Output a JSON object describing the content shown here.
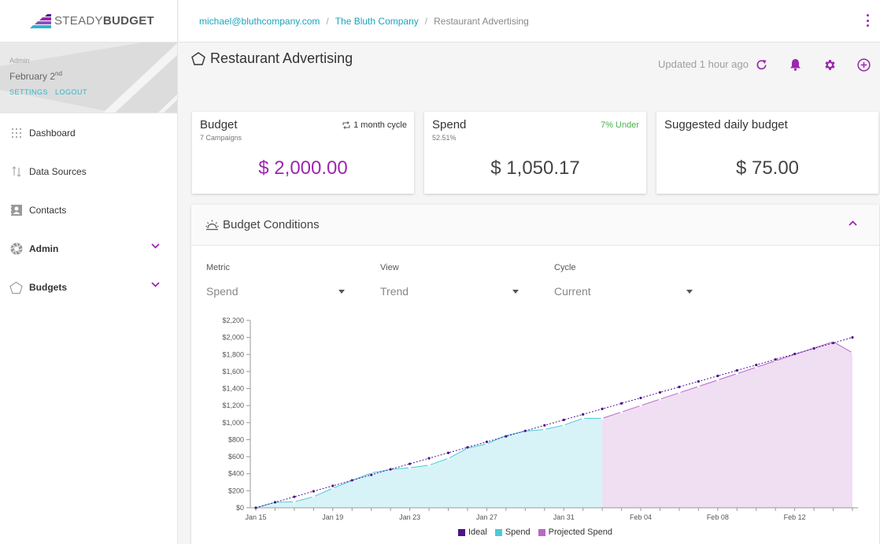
{
  "brand": {
    "name_light": "STEADY",
    "name_bold": "BUDGET"
  },
  "user": {
    "role": "Admin",
    "date_main": "February 2",
    "date_suffix": "nd",
    "settings_label": "SETTINGS",
    "logout_label": "LOGOUT"
  },
  "nav": {
    "dashboard": "Dashboard",
    "data_sources": "Data Sources",
    "contacts": "Contacts",
    "admin": "Admin",
    "budgets": "Budgets"
  },
  "breadcrumb": {
    "email": "michael@bluthcompany.com",
    "sep1": "/",
    "company": "The Bluth Company",
    "sep2": "/",
    "current": "Restaurant Advertising"
  },
  "header": {
    "title": "Restaurant Advertising",
    "updated": "Updated 1 hour ago"
  },
  "cards": {
    "budget": {
      "title": "Budget",
      "sub": "7 Campaigns",
      "cycle": "1 month cycle",
      "value": "$ 2,000.00"
    },
    "spend": {
      "title": "Spend",
      "sub": "52.51%",
      "status": "7% Under",
      "value": "$ 1,050.17"
    },
    "daily": {
      "title": "Suggested daily budget",
      "value": "$ 75.00"
    }
  },
  "conditions": {
    "title": "Budget Conditions",
    "metric": {
      "label": "Metric",
      "value": "Spend"
    },
    "view": {
      "label": "View",
      "value": "Trend"
    },
    "cycle": {
      "label": "Cycle",
      "value": "Current"
    }
  },
  "colors": {
    "accent": "#9c27b0",
    "link": "#1aa5bc",
    "ideal": "#4a148c",
    "spend": "#4dc9dc",
    "projected": "#ba68c8"
  },
  "chart_data": {
    "type": "area",
    "ylim": [
      0,
      2200
    ],
    "yticks": [
      0,
      200,
      400,
      600,
      800,
      1000,
      1200,
      1400,
      1600,
      1800,
      2000,
      2200
    ],
    "ytick_labels": [
      "$0",
      "$200",
      "$400",
      "$600",
      "$800",
      "$1,000",
      "$1,200",
      "$1,400",
      "$1,600",
      "$1,800",
      "$2,000",
      "$2,200"
    ],
    "x_days": [
      "Jan 15",
      "Jan 16",
      "Jan 17",
      "Jan 18",
      "Jan 19",
      "Jan 20",
      "Jan 21",
      "Jan 22",
      "Jan 23",
      "Jan 24",
      "Jan 25",
      "Jan 26",
      "Jan 27",
      "Jan 28",
      "Jan 29",
      "Jan 30",
      "Jan 31",
      "Feb 01",
      "Feb 02",
      "Feb 03",
      "Feb 04",
      "Feb 05",
      "Feb 06",
      "Feb 07",
      "Feb 08",
      "Feb 09",
      "Feb 10",
      "Feb 11",
      "Feb 12",
      "Feb 13",
      "Feb 14",
      "Feb 15"
    ],
    "xtick_labels": [
      "Jan 15",
      "Jan 19",
      "Jan 23",
      "Jan 27",
      "Jan 31",
      "Feb 04",
      "Feb 08",
      "Feb 12"
    ],
    "series": [
      {
        "name": "Ideal",
        "values": [
          0,
          65,
          129,
          194,
          258,
          323,
          387,
          452,
          516,
          581,
          645,
          710,
          774,
          839,
          903,
          968,
          1032,
          1097,
          1161,
          1226,
          1290,
          1355,
          1419,
          1484,
          1548,
          1613,
          1677,
          1742,
          1806,
          1871,
          1935,
          2000
        ]
      },
      {
        "name": "Spend",
        "values": [
          0,
          65,
          70,
          130,
          230,
          320,
          410,
          450,
          470,
          500,
          580,
          700,
          750,
          850,
          900,
          920,
          970,
          1050,
          1050,
          null,
          null,
          null,
          null,
          null,
          null,
          null,
          null,
          null,
          null,
          null,
          null,
          null
        ]
      },
      {
        "name": "Projected Spend",
        "values": [
          null,
          null,
          null,
          null,
          null,
          null,
          null,
          null,
          null,
          null,
          null,
          null,
          null,
          null,
          null,
          null,
          null,
          null,
          1050,
          1125,
          1200,
          1275,
          1350,
          1425,
          1500,
          1575,
          1650,
          1725,
          1800,
          1875,
          1950,
          1820
        ]
      }
    ],
    "legend_position": "bottom"
  }
}
